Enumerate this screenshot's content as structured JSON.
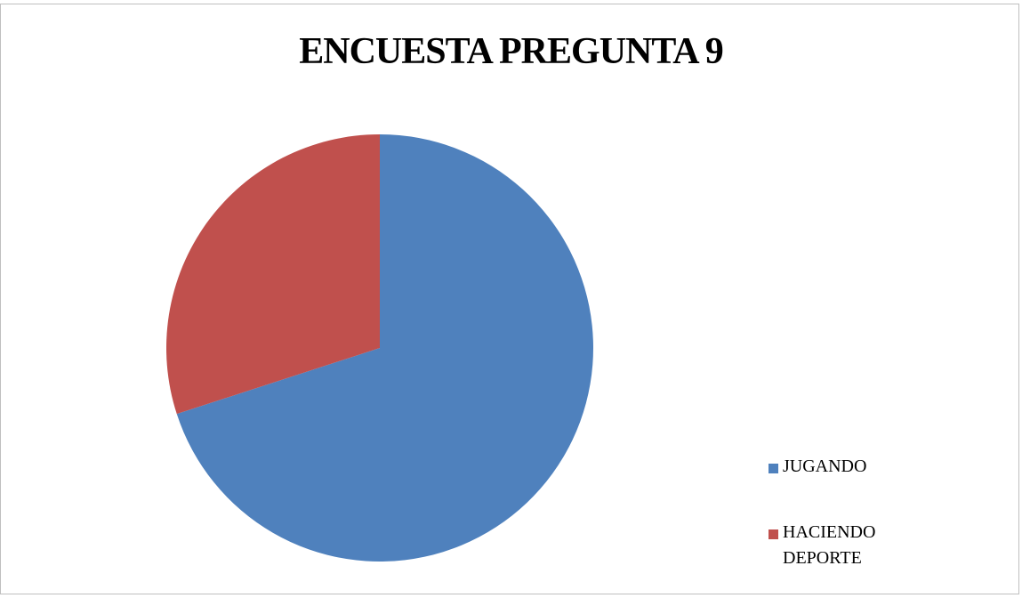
{
  "chart_data": {
    "type": "pie",
    "title": "ENCUESTA PREGUNTA 9",
    "categories": [
      "JUGANDO",
      "HACIENDO DEPORTE"
    ],
    "values": [
      70,
      30
    ],
    "colors": [
      "#4f81bd",
      "#c0504d"
    ],
    "legend": "right"
  }
}
